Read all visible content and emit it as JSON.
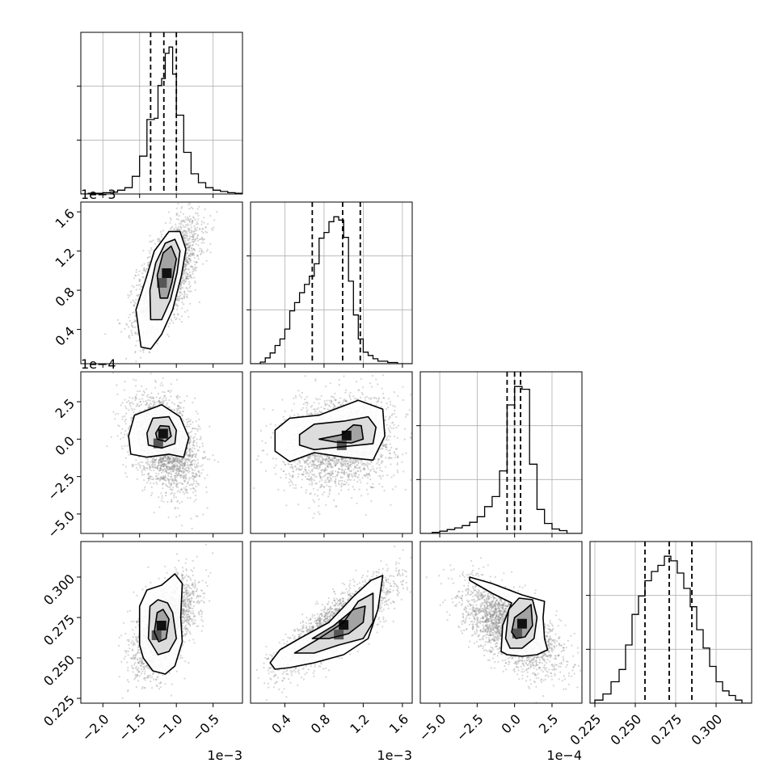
{
  "chart_data": {
    "type": "corner",
    "grid": true,
    "axes": [
      {
        "range": [
          -2.3,
          -0.1
        ],
        "ticks": [
          -2.0,
          -1.5,
          -1.0,
          -0.5
        ],
        "tick_labels": [
          "−2.0",
          "−1.5",
          "−1.0",
          "−0.5"
        ],
        "offset_label": "1e−3",
        "quantiles": [
          -1.35,
          -1.17,
          -1.0
        ]
      },
      {
        "range": [
          0.05,
          1.7
        ],
        "ticks": [
          0.4,
          0.8,
          1.2,
          1.6
        ],
        "tick_labels": [
          "0.4",
          "0.8",
          "1.2",
          "1.6"
        ],
        "offset_label": "1e−3",
        "quantiles": [
          0.68,
          0.99,
          1.17
        ]
      },
      {
        "range": [
          -6.3,
          4.5
        ],
        "ticks": [
          -5.0,
          -2.5,
          0.0,
          2.5
        ],
        "tick_labels": [
          "−5.0",
          "−2.5",
          "0.0",
          "2.5"
        ],
        "offset_label": "1e−4",
        "quantiles": [
          -0.5,
          0.0,
          0.4
        ]
      },
      {
        "range": [
          0.222,
          0.322
        ],
        "ticks": [
          0.225,
          0.25,
          0.275,
          0.3
        ],
        "tick_labels": [
          "0.225",
          "0.250",
          "0.275",
          "0.300"
        ],
        "offset_label": "",
        "quantiles": [
          0.256,
          0.271,
          0.285
        ]
      }
    ],
    "histograms": [
      {
        "edges": [
          -2.3,
          -2.2,
          -2.1,
          -2.0,
          -1.9,
          -1.8,
          -1.7,
          -1.6,
          -1.5,
          -1.4,
          -1.3,
          -1.25,
          -1.2,
          -1.15,
          -1.1,
          -1.05,
          -1.0,
          -0.9,
          -0.8,
          -0.7,
          -0.6,
          -0.5,
          -0.4,
          -0.3,
          -0.2,
          -0.1
        ],
        "counts": [
          0,
          1,
          1,
          2,
          3,
          6,
          10,
          28,
          60,
          118,
          120,
          172,
          183,
          223,
          233,
          190,
          125,
          66,
          32,
          18,
          10,
          6,
          4,
          2,
          1
        ]
      },
      {
        "edges": [
          0.05,
          0.15,
          0.2,
          0.25,
          0.3,
          0.35,
          0.4,
          0.45,
          0.5,
          0.55,
          0.6,
          0.65,
          0.7,
          0.75,
          0.8,
          0.85,
          0.9,
          0.95,
          1.0,
          1.05,
          1.1,
          1.15,
          1.2,
          1.25,
          1.3,
          1.35,
          1.45,
          1.55,
          1.7
        ],
        "counts": [
          0,
          4,
          14,
          26,
          44,
          60,
          84,
          128,
          148,
          172,
          192,
          212,
          242,
          304,
          318,
          344,
          356,
          348,
          306,
          200,
          118,
          60,
          28,
          20,
          12,
          6,
          3,
          0
        ]
      },
      {
        "edges": [
          -6.3,
          -5.5,
          -5.0,
          -4.5,
          -4.0,
          -3.5,
          -3.0,
          -2.5,
          -2.0,
          -1.5,
          -1.0,
          -0.5,
          0.0,
          0.5,
          1.0,
          1.5,
          2.0,
          2.5,
          3.0,
          3.5,
          4.5
        ],
        "counts": [
          0,
          2,
          4,
          7,
          10,
          14,
          20,
          30,
          48,
          66,
          112,
          230,
          263,
          258,
          124,
          43,
          18,
          8,
          5,
          0
        ]
      },
      {
        "edges": [
          0.222,
          0.225,
          0.23,
          0.235,
          0.24,
          0.244,
          0.248,
          0.252,
          0.256,
          0.26,
          0.264,
          0.268,
          0.272,
          0.276,
          0.28,
          0.284,
          0.288,
          0.292,
          0.296,
          0.3,
          0.304,
          0.308,
          0.312,
          0.316,
          0.322
        ],
        "counts": [
          0,
          2,
          6,
          14,
          22,
          38,
          58,
          70,
          80,
          86,
          90,
          96,
          93,
          85,
          75,
          63,
          48,
          36,
          24,
          14,
          8,
          5,
          2,
          0
        ]
      }
    ],
    "pairs": [
      {
        "x": 0,
        "y": 1,
        "mean": [
          -1.12,
          0.95
        ],
        "sd": [
          0.21,
          0.28
        ],
        "rho": 0.62,
        "contours": [
          [
            [
              -1.48,
              0.22
            ],
            [
              -1.55,
              0.6
            ],
            [
              -1.4,
              0.95
            ],
            [
              -1.3,
              1.2
            ],
            [
              -1.1,
              1.4
            ],
            [
              -0.95,
              1.4
            ],
            [
              -0.87,
              1.22
            ],
            [
              -0.93,
              0.95
            ],
            [
              -1.05,
              0.6
            ],
            [
              -1.2,
              0.35
            ],
            [
              -1.35,
              0.2
            ]
          ],
          [
            [
              -1.35,
              0.5
            ],
            [
              -1.36,
              0.8
            ],
            [
              -1.28,
              1.08
            ],
            [
              -1.15,
              1.28
            ],
            [
              -1.02,
              1.32
            ],
            [
              -0.95,
              1.2
            ],
            [
              -0.99,
              0.98
            ],
            [
              -1.08,
              0.7
            ],
            [
              -1.2,
              0.5
            ]
          ],
          [
            [
              -1.22,
              0.72
            ],
            [
              -1.26,
              0.95
            ],
            [
              -1.18,
              1.18
            ],
            [
              -1.07,
              1.25
            ],
            [
              -1.0,
              1.12
            ],
            [
              -1.06,
              0.88
            ],
            [
              -1.12,
              0.72
            ]
          ]
        ]
      },
      {
        "x": 0,
        "y": 2,
        "mean": [
          -1.15,
          -0.3
        ],
        "sd": [
          0.22,
          1.5
        ],
        "rho": -0.35,
        "contours": [
          [
            [
              -1.65,
              0.2
            ],
            [
              -1.57,
              1.6
            ],
            [
              -1.2,
              2.3
            ],
            [
              -0.95,
              1.5
            ],
            [
              -0.83,
              0.1
            ],
            [
              -0.9,
              -1.2
            ],
            [
              -1.1,
              -1.0
            ],
            [
              -1.4,
              -1.2
            ],
            [
              -1.62,
              -1.0
            ]
          ],
          [
            [
              -1.4,
              0.4
            ],
            [
              -1.32,
              1.4
            ],
            [
              -1.1,
              1.5
            ],
            [
              -1.0,
              0.6
            ],
            [
              -1.02,
              -0.3
            ],
            [
              -1.2,
              -0.6
            ],
            [
              -1.38,
              -0.4
            ]
          ],
          [
            [
              -1.28,
              0.4
            ],
            [
              -1.22,
              0.9
            ],
            [
              -1.1,
              0.85
            ],
            [
              -1.07,
              0.2
            ],
            [
              -1.15,
              -0.15
            ],
            [
              -1.26,
              0.0
            ]
          ]
        ]
      },
      {
        "x": 1,
        "y": 2,
        "mean": [
          0.95,
          -0.2
        ],
        "sd": [
          0.28,
          1.5
        ],
        "rho": 0.15,
        "contours": [
          [
            [
              0.3,
              0.6
            ],
            [
              0.45,
              1.4
            ],
            [
              0.75,
              1.6
            ],
            [
              1.15,
              2.6
            ],
            [
              1.4,
              2.0
            ],
            [
              1.42,
              0.2
            ],
            [
              1.3,
              -1.4
            ],
            [
              1.0,
              -1.2
            ],
            [
              0.7,
              -0.9
            ],
            [
              0.45,
              -1.5
            ],
            [
              0.3,
              -0.8
            ]
          ],
          [
            [
              0.55,
              0.3
            ],
            [
              0.7,
              1.0
            ],
            [
              1.0,
              1.2
            ],
            [
              1.25,
              1.5
            ],
            [
              1.33,
              0.8
            ],
            [
              1.3,
              -0.3
            ],
            [
              1.0,
              -0.5
            ],
            [
              0.7,
              -0.7
            ],
            [
              0.55,
              -0.4
            ]
          ],
          [
            [
              0.75,
              0.0
            ],
            [
              0.98,
              0.3
            ],
            [
              1.1,
              0.95
            ],
            [
              1.18,
              0.9
            ],
            [
              1.2,
              0.0
            ],
            [
              1.08,
              -0.25
            ],
            [
              0.92,
              -0.2
            ]
          ]
        ]
      },
      {
        "x": 0,
        "y": 3,
        "mean": [
          -1.15,
          0.27
        ],
        "sd": [
          0.2,
          0.014
        ],
        "rho": 0.55,
        "contours": [
          [
            [
              -1.5,
              0.258
            ],
            [
              -1.5,
              0.282
            ],
            [
              -1.4,
              0.292
            ],
            [
              -1.2,
              0.295
            ],
            [
              -1.02,
              0.302
            ],
            [
              -0.92,
              0.296
            ],
            [
              -0.94,
              0.275
            ],
            [
              -0.92,
              0.26
            ],
            [
              -1.02,
              0.245
            ],
            [
              -1.15,
              0.24
            ],
            [
              -1.32,
              0.242
            ],
            [
              -1.45,
              0.25
            ]
          ],
          [
            [
              -1.38,
              0.262
            ],
            [
              -1.36,
              0.282
            ],
            [
              -1.25,
              0.286
            ],
            [
              -1.12,
              0.284
            ],
            [
              -1.05,
              0.278
            ],
            [
              -1.0,
              0.262
            ],
            [
              -1.1,
              0.254
            ],
            [
              -1.25,
              0.252
            ]
          ],
          [
            [
              -1.3,
              0.266
            ],
            [
              -1.26,
              0.278
            ],
            [
              -1.18,
              0.28
            ],
            [
              -1.1,
              0.274
            ],
            [
              -1.14,
              0.262
            ],
            [
              -1.24,
              0.26
            ]
          ]
        ]
      },
      {
        "x": 1,
        "y": 3,
        "mean": [
          0.93,
          0.27
        ],
        "sd": [
          0.28,
          0.014
        ],
        "rho": 0.82,
        "contours": [
          [
            [
              0.25,
              0.247
            ],
            [
              0.35,
              0.255
            ],
            [
              0.55,
              0.262
            ],
            [
              0.85,
              0.272
            ],
            [
              1.1,
              0.288
            ],
            [
              1.28,
              0.298
            ],
            [
              1.4,
              0.301
            ],
            [
              1.35,
              0.28
            ],
            [
              1.25,
              0.262
            ],
            [
              1.0,
              0.252
            ],
            [
              0.7,
              0.247
            ],
            [
              0.45,
              0.244
            ],
            [
              0.3,
              0.243
            ]
          ],
          [
            [
              0.5,
              0.253
            ],
            [
              0.75,
              0.262
            ],
            [
              1.0,
              0.272
            ],
            [
              1.15,
              0.285
            ],
            [
              1.3,
              0.29
            ],
            [
              1.3,
              0.272
            ],
            [
              1.2,
              0.262
            ],
            [
              0.95,
              0.258
            ],
            [
              0.7,
              0.253
            ]
          ],
          [
            [
              0.68,
              0.262
            ],
            [
              0.9,
              0.27
            ],
            [
              1.1,
              0.28
            ],
            [
              1.22,
              0.282
            ],
            [
              1.2,
              0.272
            ],
            [
              1.05,
              0.265
            ],
            [
              0.85,
              0.262
            ]
          ]
        ]
      },
      {
        "x": 2,
        "y": 3,
        "mean": [
          -0.2,
          0.268
        ],
        "sd": [
          1.6,
          0.013
        ],
        "rho": -0.6,
        "contours": [
          [
            [
              -3.0,
              0.3
            ],
            [
              -1.5,
              0.296
            ],
            [
              0.5,
              0.289
            ],
            [
              2.0,
              0.285
            ],
            [
              1.9,
              0.275
            ],
            [
              2.0,
              0.262
            ],
            [
              2.2,
              0.255
            ],
            [
              1.5,
              0.252
            ],
            [
              0.5,
              0.251
            ],
            [
              -0.5,
              0.252
            ],
            [
              -0.9,
              0.254
            ],
            [
              -0.8,
              0.27
            ],
            [
              -0.2,
              0.284
            ],
            [
              -1.5,
              0.29
            ],
            [
              -3.0,
              0.298
            ]
          ],
          [
            [
              -0.6,
              0.262
            ],
            [
              -0.4,
              0.28
            ],
            [
              0.3,
              0.287
            ],
            [
              1.2,
              0.286
            ],
            [
              1.5,
              0.275
            ],
            [
              1.3,
              0.262
            ],
            [
              0.5,
              0.256
            ],
            [
              -0.3,
              0.256
            ]
          ],
          [
            [
              -0.2,
              0.266
            ],
            [
              0.0,
              0.275
            ],
            [
              0.6,
              0.279
            ],
            [
              1.1,
              0.283
            ],
            [
              1.2,
              0.27
            ],
            [
              0.7,
              0.263
            ],
            [
              0.1,
              0.262
            ]
          ]
        ]
      }
    ]
  }
}
